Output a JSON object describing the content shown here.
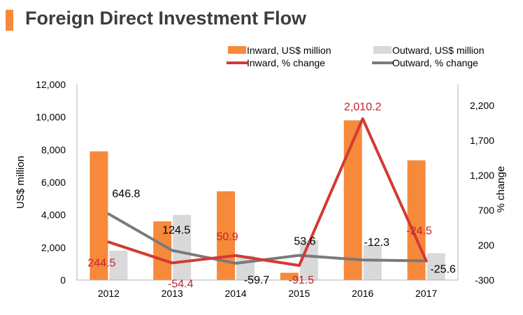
{
  "header": {
    "title": "Foreign Direct Investment Flow"
  },
  "colors": {
    "inward_bar": "#f7893b",
    "outward_bar": "#d9d9d9",
    "inward_line": "#d13b34",
    "outward_line": "#7a7a7a",
    "inward_label": "#c0232b",
    "outward_label": "#000000",
    "axis_text": "#000000",
    "title_accent": "#f7893b"
  },
  "chart_data": {
    "type": "bar",
    "title": "Foreign Direct Investment Flow",
    "categories": [
      "2012",
      "2013",
      "2014",
      "2015",
      "2016",
      "2017"
    ],
    "series": [
      {
        "name": "Inward, US$ million",
        "type": "bar",
        "axis": "left",
        "values": [
          7900,
          3600,
          5450,
          450,
          9800,
          7350
        ]
      },
      {
        "name": "Outward, US$ million",
        "type": "bar",
        "axis": "left",
        "values": [
          1800,
          4000,
          1500,
          2450,
          2150,
          1650
        ]
      },
      {
        "name": "Inward, % change",
        "type": "line",
        "axis": "right",
        "values": [
          244.5,
          -54.4,
          50.9,
          -91.5,
          2010.2,
          -24.5
        ],
        "labels": [
          "244.5",
          "-54.4",
          "50.9",
          "-91.5",
          "2,010.2",
          "-24.5"
        ]
      },
      {
        "name": "Outward, % change",
        "type": "line",
        "axis": "right",
        "values": [
          646.8,
          124.5,
          -59.7,
          53.6,
          -12.3,
          -25.6
        ],
        "labels": [
          "646.8",
          "124.5",
          "-59.7",
          "53.6",
          "-12.3",
          "-25.6"
        ]
      }
    ],
    "ylabel": "US$ million",
    "ylim": [
      0,
      12000
    ],
    "yticks": [
      0,
      2000,
      4000,
      6000,
      8000,
      10000,
      12000
    ],
    "ytick_labels": [
      "0",
      "2,000",
      "4,000",
      "6,000",
      "8,000",
      "10,000",
      "12,000"
    ],
    "y2label": "% change",
    "y2lim": [
      -300,
      2500
    ],
    "y2ticks": [
      -300,
      200,
      700,
      1200,
      1700,
      2200
    ],
    "y2tick_labels": [
      "-300",
      "200",
      "700",
      "1,200",
      "1,700",
      "2,200"
    ],
    "legend_position": "top-right",
    "grid": false
  }
}
